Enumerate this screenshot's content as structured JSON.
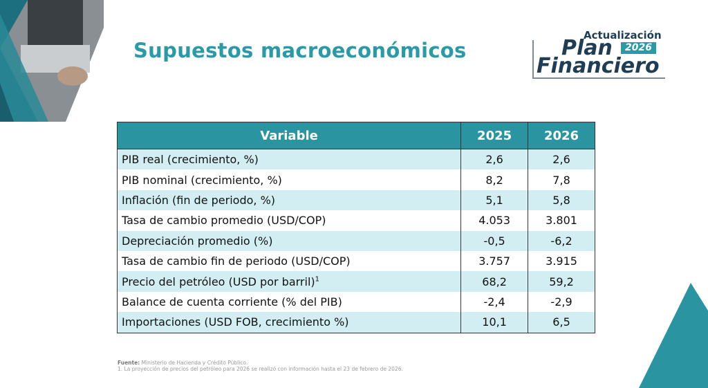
{
  "title": "Supuestos macroeconómicos",
  "logo": {
    "line1": "Actualización",
    "line2": "Plan",
    "year": "2026",
    "line3": "Financiero"
  },
  "table": {
    "headers": [
      "Variable",
      "2025",
      "2026"
    ],
    "rows": [
      {
        "variable": "PIB real (crecimiento, %)",
        "y2025": "2,6",
        "y2026": "2,6"
      },
      {
        "variable": "PIB nominal (crecimiento, %)",
        "y2025": "8,2",
        "y2026": "7,8"
      },
      {
        "variable": "Inflación (fin de periodo, %)",
        "y2025": "5,1",
        "y2026": "5,8"
      },
      {
        "variable": "Tasa de cambio promedio (USD/COP)",
        "y2025": "4.053",
        "y2026": "3.801"
      },
      {
        "variable": "Depreciación promedio (%)",
        "y2025": "-0,5",
        "y2026": "-6,2"
      },
      {
        "variable": "Tasa de cambio fin de periodo (USD/COP)",
        "y2025": "3.757",
        "y2026": "3.915"
      },
      {
        "variable": "Precio del petróleo (USD por barril)",
        "sup": "1",
        "y2025": "68,2",
        "y2026": "59,2"
      },
      {
        "variable": "Balance de cuenta corriente (% del PIB)",
        "y2025": "-2,4",
        "y2026": "-2,9"
      },
      {
        "variable": "Importaciones (USD FOB, crecimiento %)",
        "y2025": "10,1",
        "y2026": "6,5"
      }
    ]
  },
  "notes": {
    "source_label": "Fuente:",
    "source": " Ministerio de Hacienda y Crédito Público.",
    "footnote": "1. La proyección de precios del petróleo para 2026 se realizó con información hasta el 23 de febrero de 2026."
  },
  "colors": {
    "accent": "#2a9aa6",
    "row_alt": "#d3eef3",
    "navy": "#1f3d55"
  }
}
